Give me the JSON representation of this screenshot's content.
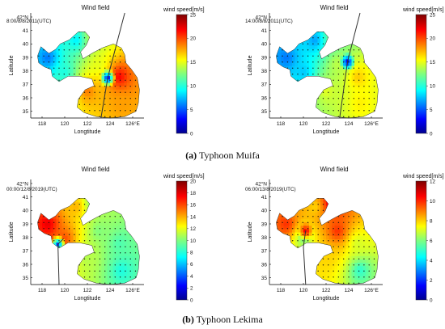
{
  "panels": [
    {
      "title": "Wind field",
      "timestamp": "8:00/8/8/2011(UTC)",
      "colorbar_label": "wind speed[m/s]",
      "colorbar_ticks": [
        "0",
        "5",
        "10",
        "15",
        "20",
        "25"
      ],
      "colorbar_range": [
        0,
        25
      ],
      "xlabel": "Longtitude",
      "ylabel": "Latitude",
      "xticks": [
        "118",
        "120",
        "122",
        "124",
        "126°E"
      ],
      "yticks": [
        "42°N",
        "41",
        "40",
        "39",
        "38",
        "37",
        "36",
        "35"
      ]
    },
    {
      "title": "Wind field",
      "timestamp": "14:00/8/8/2011(UTC)",
      "colorbar_label": "wind speed[m/s]",
      "colorbar_ticks": [
        "0",
        "5",
        "10",
        "15",
        "20",
        "25"
      ],
      "colorbar_range": [
        0,
        25
      ],
      "xlabel": "Longtitude",
      "ylabel": "Latitude",
      "xticks": [
        "118",
        "120",
        "122",
        "124",
        "126°E"
      ],
      "yticks": [
        "42°N",
        "41",
        "40",
        "39",
        "38",
        "37",
        "36",
        "35"
      ]
    },
    {
      "title": "Wind field",
      "timestamp": "00:00/12/8/2019(UTC)",
      "colorbar_label": "wind speed[m/s]",
      "colorbar_ticks": [
        "0",
        "2",
        "4",
        "6",
        "8",
        "10",
        "12",
        "14",
        "16",
        "18",
        "20"
      ],
      "colorbar_range": [
        0,
        20
      ],
      "xlabel": "Longtitude",
      "ylabel": "Latitude",
      "xticks": [
        "118",
        "120",
        "122",
        "124",
        "126°E"
      ],
      "yticks": [
        "42°N",
        "41",
        "40",
        "39",
        "38",
        "37",
        "36",
        "35"
      ]
    },
    {
      "title": "Wind field",
      "timestamp": "06:00/13/8/2019(UTC)",
      "colorbar_label": "wind speed[m/s]",
      "colorbar_ticks": [
        "0",
        "2",
        "4",
        "6",
        "8",
        "10",
        "12"
      ],
      "colorbar_range": [
        0,
        12
      ],
      "xlabel": "Longtitude",
      "ylabel": "Latitude",
      "xticks": [
        "118",
        "120",
        "122",
        "124",
        "126°E"
      ],
      "yticks": [
        "42°N",
        "41",
        "40",
        "39",
        "38",
        "37",
        "36",
        "35"
      ]
    }
  ],
  "captions": {
    "a_label": "(a)",
    "a_text": " Typhoon Muifa",
    "b_label": "(b)",
    "b_text": " Typhoon Lekima"
  },
  "chart_data": [
    {
      "type": "heatmap",
      "title": "Wind field",
      "subtitle": "8:00/8/8/2011(UTC)",
      "xlabel": "Longtitude",
      "ylabel": "Latitude",
      "xlim": [
        117,
        127
      ],
      "ylim": [
        34.5,
        42.3
      ],
      "colorbar": {
        "label": "wind speed[m/s]",
        "range": [
          0,
          25
        ]
      },
      "typhoon_center": {
        "lon": 123.8,
        "lat": 37.5,
        "speed": 2
      },
      "speed_samples": [
        {
          "lon": 118.5,
          "lat": 39.0,
          "speed": 6
        },
        {
          "lon": 121.0,
          "lat": 40.3,
          "speed": 9
        },
        {
          "lon": 122.5,
          "lat": 40.6,
          "speed": 14
        },
        {
          "lon": 123.0,
          "lat": 38.5,
          "speed": 15
        },
        {
          "lon": 124.8,
          "lat": 37.6,
          "speed": 22
        },
        {
          "lon": 122.0,
          "lat": 36.6,
          "speed": 19
        },
        {
          "lon": 125.0,
          "lat": 35.6,
          "speed": 18
        },
        {
          "lon": 120.0,
          "lat": 37.9,
          "speed": 10
        }
      ],
      "track": [
        {
          "lon": 123.2,
          "lat": 34.5
        },
        {
          "lon": 123.8,
          "lat": 37.5
        },
        {
          "lon": 125.3,
          "lat": 42.3
        }
      ]
    },
    {
      "type": "heatmap",
      "title": "Wind field",
      "subtitle": "14:00/8/8/2011(UTC)",
      "xlabel": "Longtitude",
      "ylabel": "Latitude",
      "xlim": [
        117,
        127
      ],
      "ylim": [
        34.5,
        42.3
      ],
      "colorbar": {
        "label": "wind speed[m/s]",
        "range": [
          0,
          25
        ]
      },
      "typhoon_center": {
        "lon": 123.9,
        "lat": 38.7,
        "speed": 2
      },
      "speed_samples": [
        {
          "lon": 118.5,
          "lat": 39.0,
          "speed": 6
        },
        {
          "lon": 121.0,
          "lat": 40.3,
          "speed": 7
        },
        {
          "lon": 122.5,
          "lat": 40.6,
          "speed": 12
        },
        {
          "lon": 123.0,
          "lat": 38.5,
          "speed": 14
        },
        {
          "lon": 124.8,
          "lat": 37.6,
          "speed": 17
        },
        {
          "lon": 122.0,
          "lat": 36.6,
          "speed": 15
        },
        {
          "lon": 125.0,
          "lat": 35.6,
          "speed": 16
        },
        {
          "lon": 120.0,
          "lat": 37.9,
          "speed": 8
        }
      ],
      "track": [
        {
          "lon": 123.2,
          "lat": 34.5
        },
        {
          "lon": 123.9,
          "lat": 38.7
        },
        {
          "lon": 125.0,
          "lat": 42.3
        }
      ]
    },
    {
      "type": "heatmap",
      "title": "Wind field",
      "subtitle": "00:00/12/8/2019(UTC)",
      "xlabel": "Longtitude",
      "ylabel": "Latitude",
      "xlim": [
        117,
        127
      ],
      "ylim": [
        34.5,
        42.3
      ],
      "colorbar": {
        "label": "wind speed[m/s]",
        "range": [
          0,
          20
        ]
      },
      "typhoon_center": {
        "lon": 119.4,
        "lat": 37.5,
        "speed": 3
      },
      "speed_samples": [
        {
          "lon": 118.5,
          "lat": 39.0,
          "speed": 18
        },
        {
          "lon": 121.0,
          "lat": 40.3,
          "speed": 14
        },
        {
          "lon": 122.5,
          "lat": 40.6,
          "speed": 10
        },
        {
          "lon": 123.0,
          "lat": 38.5,
          "speed": 10
        },
        {
          "lon": 124.8,
          "lat": 37.6,
          "speed": 9
        },
        {
          "lon": 122.0,
          "lat": 36.6,
          "speed": 11
        },
        {
          "lon": 125.0,
          "lat": 35.6,
          "speed": 8
        },
        {
          "lon": 120.0,
          "lat": 37.9,
          "speed": 16
        }
      ],
      "track": [
        {
          "lon": 119.5,
          "lat": 34.5
        },
        {
          "lon": 119.4,
          "lat": 37.5
        },
        {
          "lon": 119.9,
          "lat": 37.9
        }
      ]
    },
    {
      "type": "heatmap",
      "title": "Wind field",
      "subtitle": "06:00/13/8/2019(UTC)",
      "xlabel": "Longtitude",
      "ylabel": "Latitude",
      "xlim": [
        117,
        127
      ],
      "ylim": [
        34.5,
        42.3
      ],
      "colorbar": {
        "label": "wind speed[m/s]",
        "range": [
          0,
          12
        ]
      },
      "typhoon_center": {
        "lon": 120.2,
        "lat": 38.5,
        "speed": 11
      },
      "speed_samples": [
        {
          "lon": 118.5,
          "lat": 39.0,
          "speed": 10
        },
        {
          "lon": 121.0,
          "lat": 40.3,
          "speed": 8
        },
        {
          "lon": 122.5,
          "lat": 40.6,
          "speed": 11
        },
        {
          "lon": 123.0,
          "lat": 38.5,
          "speed": 10
        },
        {
          "lon": 124.8,
          "lat": 37.6,
          "speed": 7
        },
        {
          "lon": 122.0,
          "lat": 36.6,
          "speed": 8
        },
        {
          "lon": 125.0,
          "lat": 35.6,
          "speed": 5
        },
        {
          "lon": 120.0,
          "lat": 37.9,
          "speed": 6
        }
      ],
      "track": [
        {
          "lon": 120.2,
          "lat": 34.5
        },
        {
          "lon": 120.0,
          "lat": 37.3
        },
        {
          "lon": 120.2,
          "lat": 38.5
        }
      ]
    }
  ]
}
